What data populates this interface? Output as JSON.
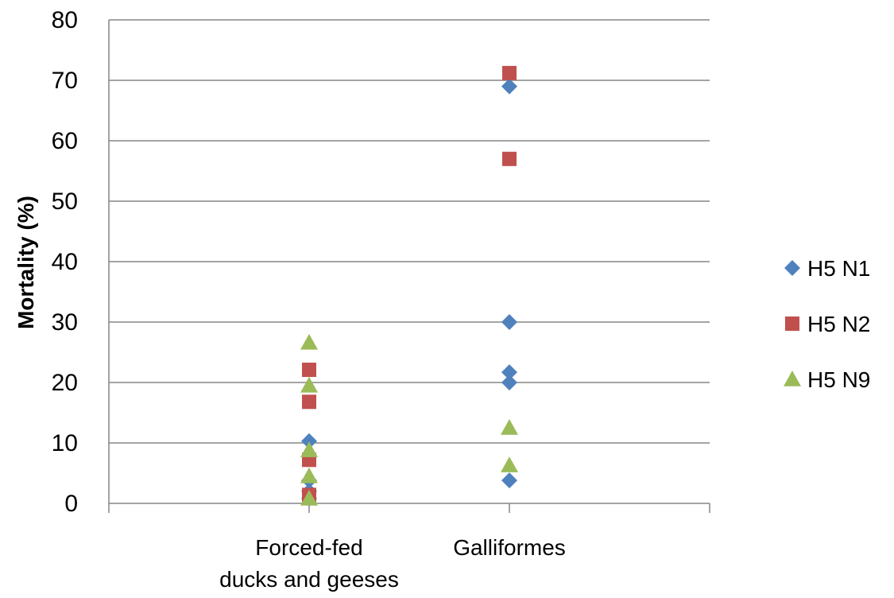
{
  "chart_data": {
    "type": "scatter",
    "title": "",
    "xlabel": "",
    "ylabel": "Mortality  (%)",
    "categories": [
      "Forced-fed ducks and geeses",
      "Galliformes"
    ],
    "category_lines": [
      [
        "Forced-fed",
        "ducks and geeses"
      ],
      [
        "Galliformes"
      ]
    ],
    "x_ticks": [
      0,
      1,
      2,
      3
    ],
    "ylim": [
      0,
      80
    ],
    "yticks": [
      "0",
      "10",
      "20",
      "30",
      "40",
      "50",
      "60",
      "70",
      "80"
    ],
    "grid": "horizontal",
    "legend_position": "right",
    "series": [
      {
        "name": "H5 N1",
        "marker": "diamond",
        "color": "#4F81BD",
        "points": [
          {
            "x": 1,
            "y": 10.3
          },
          {
            "x": 1,
            "y": 3.8
          },
          {
            "x": 1,
            "y": 2.0
          },
          {
            "x": 1,
            "y": 0.8
          },
          {
            "x": 2,
            "y": 69
          },
          {
            "x": 2,
            "y": 30
          },
          {
            "x": 2,
            "y": 21.7
          },
          {
            "x": 2,
            "y": 20
          },
          {
            "x": 2,
            "y": 3.8
          }
        ]
      },
      {
        "name": "H5 N2",
        "marker": "square",
        "color": "#C0504D",
        "points": [
          {
            "x": 1,
            "y": 22.1
          },
          {
            "x": 1,
            "y": 16.8
          },
          {
            "x": 1,
            "y": 7.2
          },
          {
            "x": 1,
            "y": 1.4
          },
          {
            "x": 2,
            "y": 71.2
          },
          {
            "x": 2,
            "y": 57
          }
        ]
      },
      {
        "name": "H5 N9",
        "marker": "triangle",
        "color": "#9BBB59",
        "points": [
          {
            "x": 1,
            "y": 26.6
          },
          {
            "x": 1,
            "y": 19.5
          },
          {
            "x": 1,
            "y": 8.8
          },
          {
            "x": 1,
            "y": 4.5
          },
          {
            "x": 1,
            "y": 0.8
          },
          {
            "x": 2,
            "y": 12.5
          },
          {
            "x": 2,
            "y": 6.3
          }
        ]
      }
    ]
  }
}
